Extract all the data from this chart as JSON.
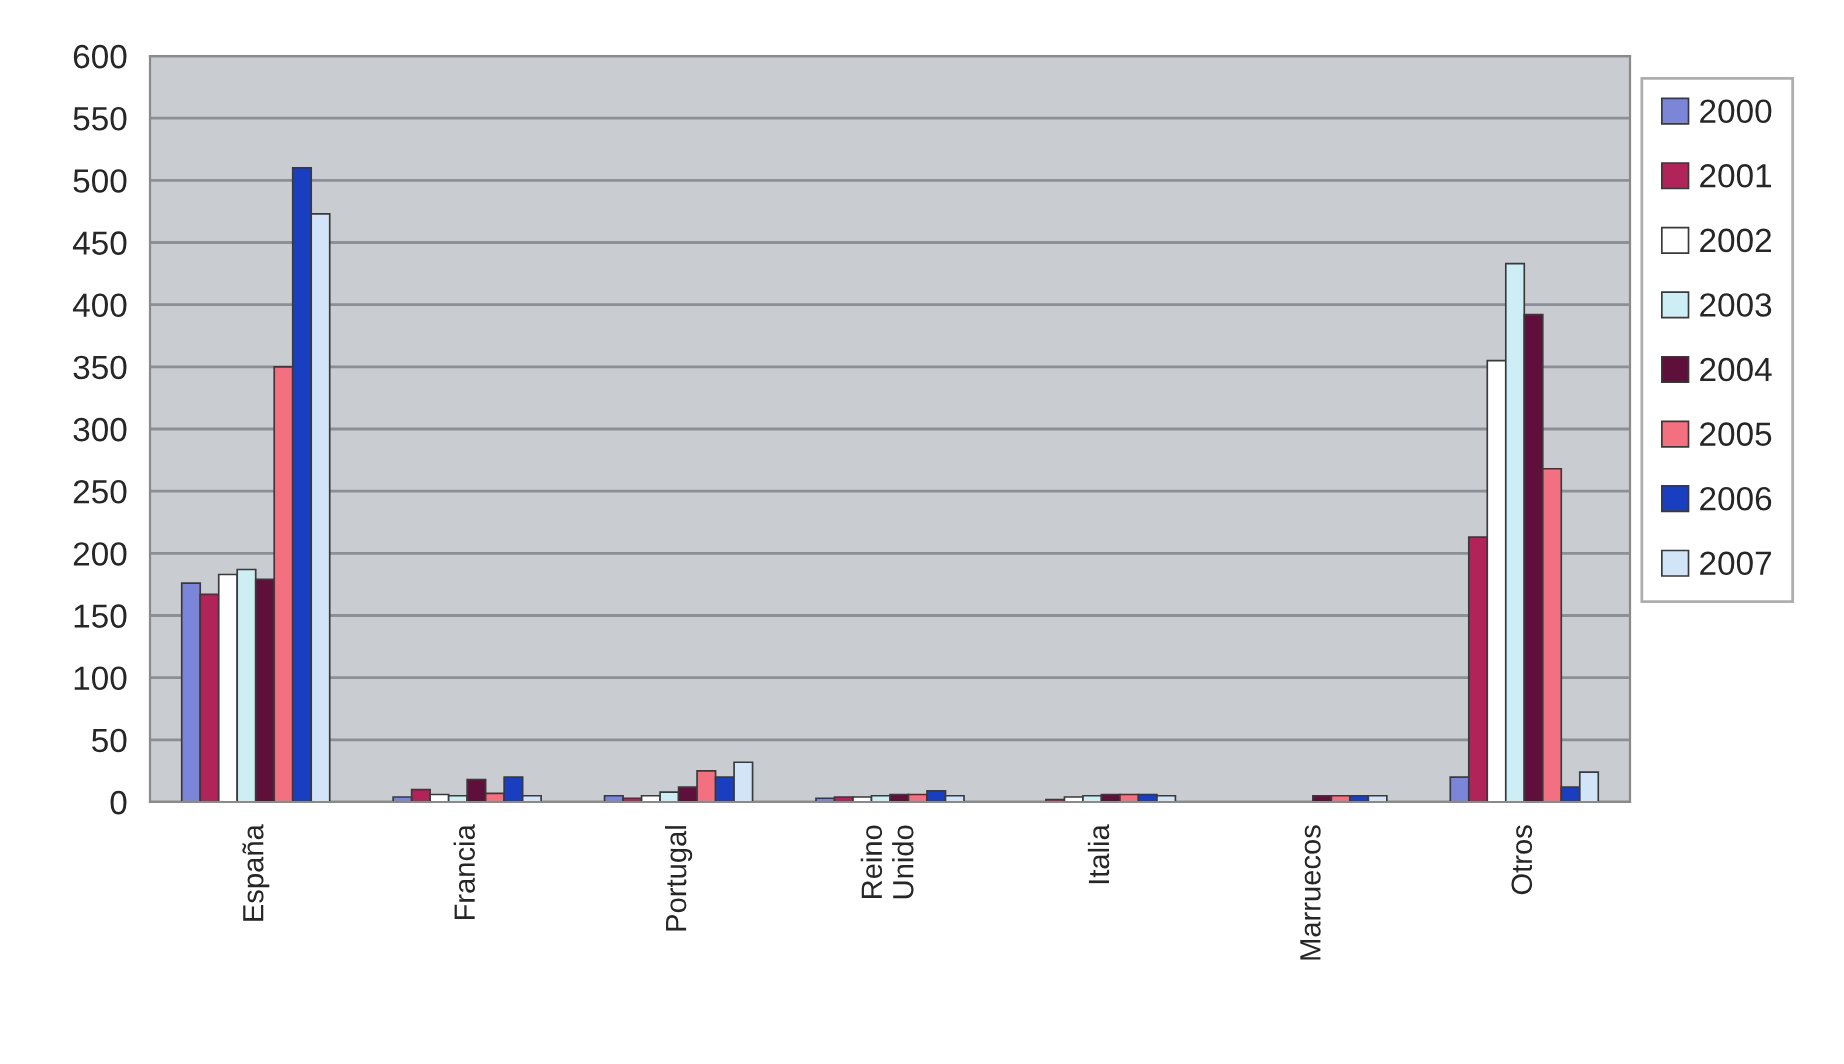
{
  "chart_data": {
    "type": "bar",
    "categories": [
      "España",
      "Francia",
      "Portugal",
      "Reino\nUnido",
      "Italia",
      "Marruecos",
      "Otros"
    ],
    "series": [
      {
        "name": "2000",
        "color": "#7b86d8",
        "values": [
          176,
          4,
          5,
          3,
          null,
          null,
          20
        ]
      },
      {
        "name": "2001",
        "color": "#b0245a",
        "values": [
          167,
          10,
          3,
          4,
          2,
          null,
          213
        ]
      },
      {
        "name": "2002",
        "color": "#ffffff",
        "values": [
          183,
          6,
          5,
          4,
          4,
          null,
          355
        ]
      },
      {
        "name": "2003",
        "color": "#cdeef5",
        "values": [
          187,
          5,
          8,
          5,
          5,
          null,
          433
        ]
      },
      {
        "name": "2004",
        "color": "#5e0f3a",
        "values": [
          179,
          18,
          12,
          6,
          6,
          5,
          392
        ]
      },
      {
        "name": "2005",
        "color": "#f2707f",
        "values": [
          350,
          7,
          25,
          6,
          6,
          5,
          268
        ]
      },
      {
        "name": "2006",
        "color": "#1a3ec0",
        "values": [
          510,
          20,
          20,
          9,
          6,
          5,
          12
        ]
      },
      {
        "name": "2007",
        "color": "#d2e4f7",
        "values": [
          473,
          5,
          32,
          5,
          5,
          5,
          24
        ]
      }
    ],
    "ylim": [
      0,
      600
    ],
    "yticks": [
      0,
      50,
      100,
      150,
      200,
      250,
      300,
      350,
      400,
      450,
      500,
      550,
      600
    ],
    "grid": "y",
    "legend": "right"
  }
}
